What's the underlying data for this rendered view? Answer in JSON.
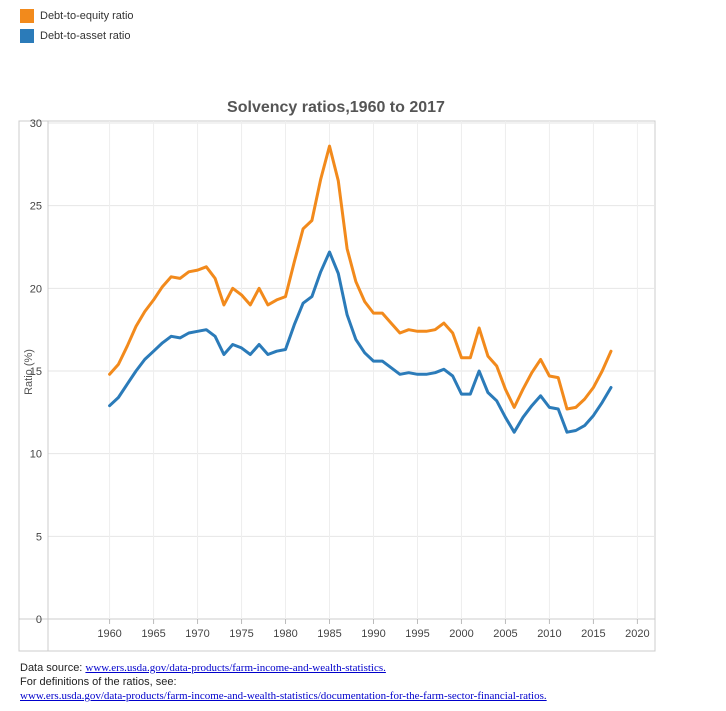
{
  "legend": [
    {
      "label": "Debt-to-equity ratio",
      "color": "#f28a1c"
    },
    {
      "label": "Debt-to-asset ratio",
      "color": "#2b7bb9"
    }
  ],
  "chart_data": {
    "type": "line",
    "title": "Solvency ratios,1960 to 2017",
    "xlabel": "",
    "ylabel": "Ratio (%)",
    "xlim": [
      1953,
      2022
    ],
    "ylim": [
      0,
      30
    ],
    "xticks": [
      1960,
      1965,
      1970,
      1975,
      1980,
      1985,
      1990,
      1995,
      2000,
      2005,
      2010,
      2015,
      2020
    ],
    "yticks": [
      0,
      5,
      10,
      15,
      20,
      25,
      30
    ],
    "grid": true,
    "legend_position": "top-left",
    "x": [
      1960,
      1961,
      1962,
      1963,
      1964,
      1965,
      1966,
      1967,
      1968,
      1969,
      1970,
      1971,
      1972,
      1973,
      1974,
      1975,
      1976,
      1977,
      1978,
      1979,
      1980,
      1981,
      1982,
      1983,
      1984,
      1985,
      1986,
      1987,
      1988,
      1989,
      1990,
      1991,
      1992,
      1993,
      1994,
      1995,
      1996,
      1997,
      1998,
      1999,
      2000,
      2001,
      2002,
      2003,
      2004,
      2005,
      2006,
      2007,
      2008,
      2009,
      2010,
      2011,
      2012,
      2013,
      2014,
      2015,
      2016,
      2017
    ],
    "series": [
      {
        "name": "Debt-to-equity ratio",
        "color": "#f28a1c",
        "values": [
          14.8,
          15.4,
          16.5,
          17.7,
          18.6,
          19.3,
          20.1,
          20.7,
          20.6,
          21.0,
          21.1,
          21.3,
          20.6,
          19.0,
          20.0,
          19.6,
          19.0,
          20.0,
          19.0,
          19.3,
          19.5,
          21.6,
          23.6,
          24.1,
          26.6,
          28.6,
          26.5,
          22.4,
          20.4,
          19.2,
          18.5,
          18.5,
          17.9,
          17.3,
          17.5,
          17.4,
          17.4,
          17.5,
          17.9,
          17.3,
          15.8,
          15.8,
          17.6,
          15.9,
          15.3,
          13.9,
          12.8,
          13.9,
          14.9,
          15.7,
          14.7,
          14.6,
          12.7,
          12.8,
          13.3,
          14.0,
          15.0,
          16.2
        ]
      },
      {
        "name": "Debt-to-asset ratio",
        "color": "#2b7bb9",
        "values": [
          12.9,
          13.4,
          14.2,
          15.0,
          15.7,
          16.2,
          16.7,
          17.1,
          17.0,
          17.3,
          17.4,
          17.5,
          17.1,
          16.0,
          16.6,
          16.4,
          16.0,
          16.6,
          16.0,
          16.2,
          16.3,
          17.8,
          19.1,
          19.5,
          21.0,
          22.2,
          20.9,
          18.4,
          16.9,
          16.1,
          15.6,
          15.6,
          15.2,
          14.8,
          14.9,
          14.8,
          14.8,
          14.9,
          15.1,
          14.7,
          13.6,
          13.6,
          15.0,
          13.7,
          13.2,
          12.2,
          11.3,
          12.2,
          12.9,
          13.5,
          12.8,
          12.7,
          11.3,
          11.4,
          11.7,
          12.3,
          13.1,
          14.0
        ]
      }
    ]
  },
  "footer": {
    "source_prefix": "Data source: ",
    "source_link": "www.ers.usda.gov/data-products/farm-income-and-wealth-statistics.",
    "definitions_text": "For definitions of the ratios, see:",
    "definitions_link": "www.ers.usda.gov/data-products/farm-income-and-wealth-statistics/documentation-for-the-farm-sector-financial-ratios."
  }
}
